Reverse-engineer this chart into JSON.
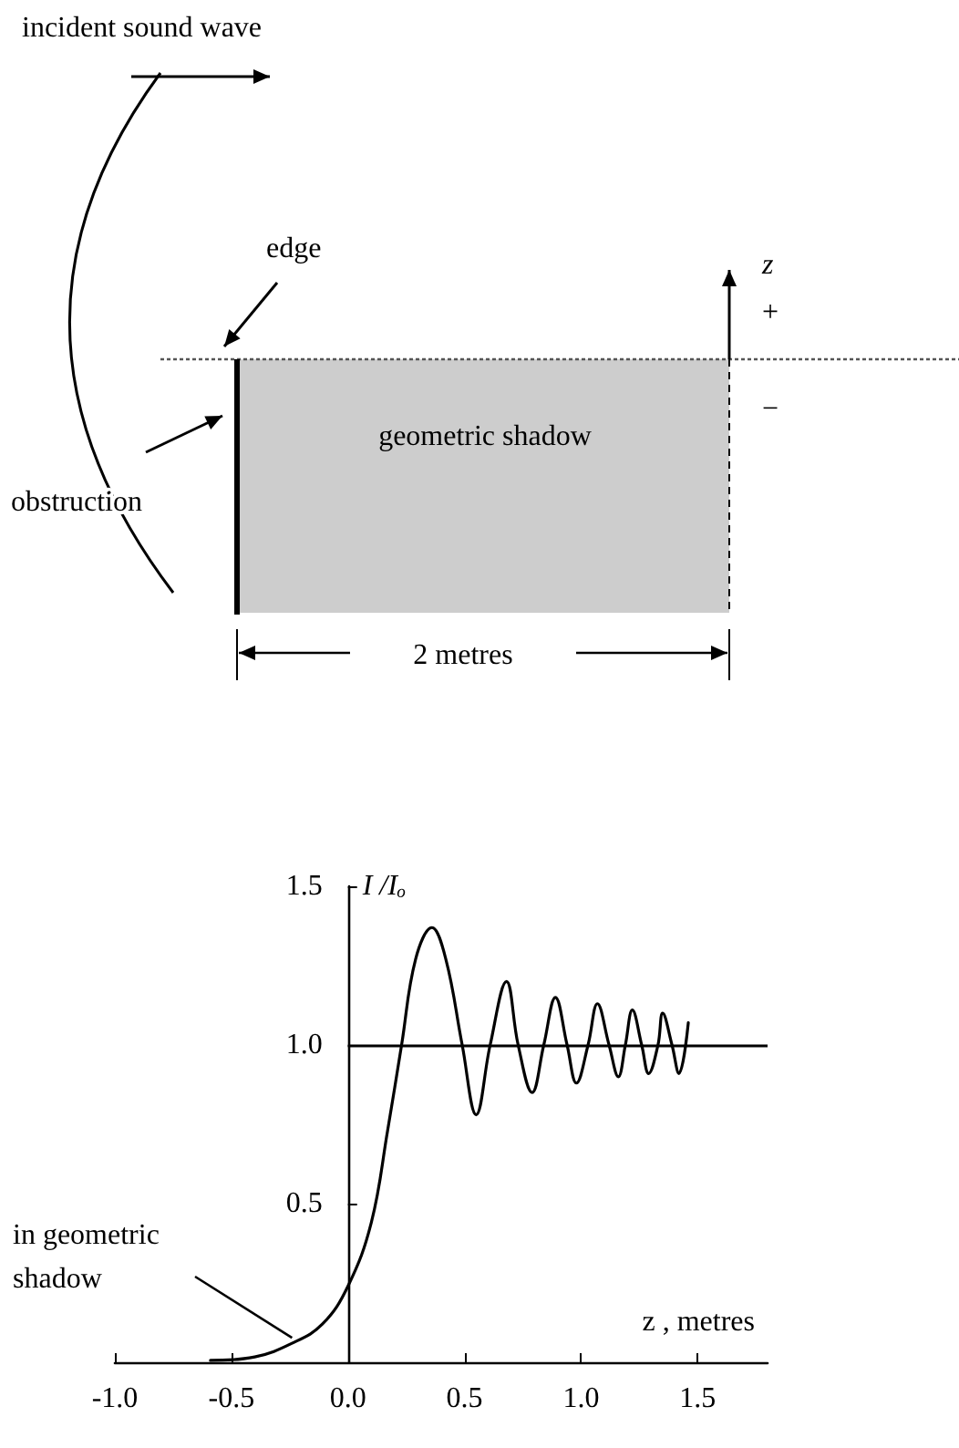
{
  "chart_data": {
    "type": "line",
    "xlabel": "z , metres",
    "ylabel": "I /Iₒ",
    "x": [
      -0.59,
      -0.4,
      -0.24,
      -0.11,
      0,
      0.1,
      0.17,
      0.23,
      0.29,
      0.36,
      0.42,
      0.49,
      0.55,
      0.61,
      0.68,
      0.73,
      0.79,
      0.84,
      0.89,
      0.94,
      0.98,
      1.03,
      1.07,
      1.12,
      1.16,
      1.19,
      1.22,
      1.26,
      1.29,
      1.33,
      1.35,
      1.39,
      1.42,
      1.46
    ],
    "values": [
      0.006,
      0.017,
      0.06,
      0.12,
      0.24,
      0.44,
      0.73,
      1.0,
      1.27,
      1.37,
      1.27,
      1.0,
      0.78,
      1.0,
      1.2,
      1.0,
      0.85,
      1.0,
      1.15,
      1.0,
      0.88,
      1.0,
      1.13,
      1.0,
      0.9,
      1.0,
      1.11,
      1.0,
      0.91,
      1.0,
      1.1,
      1.0,
      0.91,
      1.07
    ],
    "color": "#000000",
    "xlim": [
      -1.0,
      1.8
    ],
    "xticks": [
      {
        "value": -1,
        "label": "-1.0"
      },
      {
        "value": -0.5,
        "label": "-0.5"
      },
      {
        "value": 0,
        "label": "0.0"
      },
      {
        "value": 0.5,
        "label": "0.5"
      },
      {
        "value": 1,
        "label": "1.0"
      },
      {
        "value": 1.5,
        "label": "1.5"
      }
    ],
    "ylim": [
      0,
      1.5
    ],
    "yticks": [
      {
        "value": 0.5,
        "label": "0.5"
      },
      {
        "value": 1,
        "label": "1.0"
      },
      {
        "value": 1.5,
        "label": "1.5"
      }
    ],
    "grid": false,
    "marker": "none",
    "line_style": "solid",
    "ref_lines": [
      {
        "axis": "y",
        "value": 1.0
      }
    ],
    "annotations": [
      "incident sound wave",
      "edge",
      "z",
      "+",
      "−",
      "geometric shadow",
      "obstruction",
      "2 metres",
      {
        "text": "in geometric\nshadow",
        "x": -0.24,
        "y": 0.06
      }
    ]
  }
}
